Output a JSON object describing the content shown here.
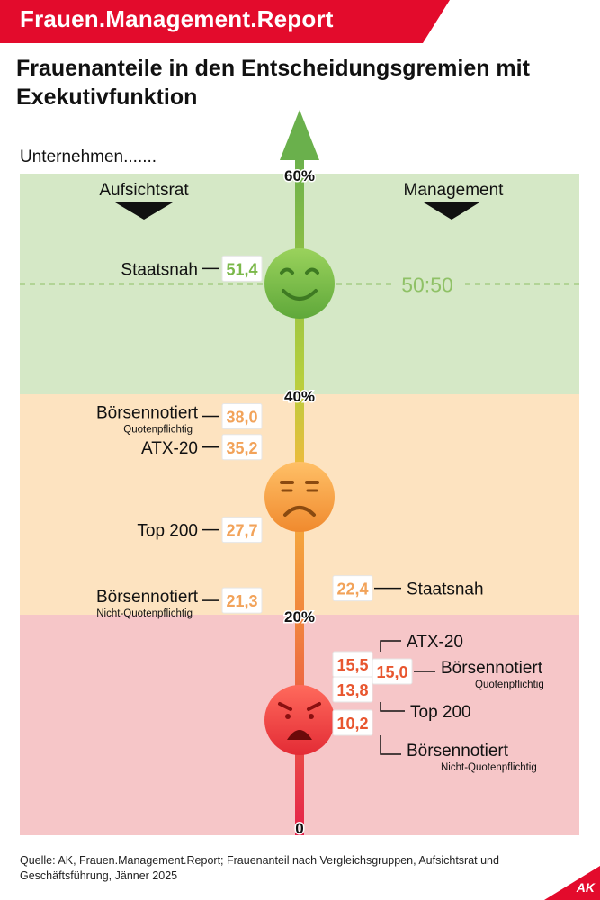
{
  "header": {
    "brand": "Frauen.Management.Report",
    "title": "Frauenanteile in den Entscheidungsgremien mit Exekutivfunktion",
    "subtitle": "Unternehmen.......",
    "source": "Quelle: AK, Frauen.Management.Report; Frauenanteil nach Vergleichsgruppen, Aufsichtsrat und Geschäftsführung, Jänner 2025",
    "logo": "AK"
  },
  "colors": {
    "brand_red": "#e30b2c",
    "zone_green": "#d5e8c6",
    "zone_orange": "#fde3c0",
    "zone_red": "#f6c6c8",
    "value_green": "#7bb84a",
    "value_orange": "#f2a35a",
    "value_red": "#e8562f",
    "smiley_green": "#7dbf48",
    "smiley_orange": "#f7a24c",
    "smiley_red": "#ef4444"
  },
  "chart_data": {
    "type": "bar",
    "axis": {
      "min": 0,
      "max": 60,
      "ticks": [
        {
          "value": 60,
          "label": "60%"
        },
        {
          "value": 40,
          "label": "40%"
        },
        {
          "value": 20,
          "label": "20%"
        },
        {
          "value": 0,
          "label": "0"
        }
      ]
    },
    "column_headers": {
      "left": "Aufsichtsrat",
      "right": "Management"
    },
    "parity_line": {
      "value": 50,
      "label": "50:50"
    },
    "zones": [
      {
        "from": 40,
        "to": 60,
        "color": "#d5e8c6",
        "mood": "happy",
        "smiley_icon": "happy-smiley-icon"
      },
      {
        "from": 20,
        "to": 40,
        "color": "#fde3c0",
        "mood": "sad",
        "smiley_icon": "sad-smiley-icon"
      },
      {
        "from": 0,
        "to": 20,
        "color": "#f6c6c8",
        "mood": "angry",
        "smiley_icon": "angry-smiley-icon"
      }
    ],
    "series": [
      {
        "name": "Aufsichtsrat",
        "points": [
          {
            "category": "Staatsnah",
            "sublabel": "",
            "value": 51.4,
            "value_label": "51,4"
          },
          {
            "category": "Börsennotiert",
            "sublabel": "Quotenpflichtig",
            "value": 38.0,
            "value_label": "38,0"
          },
          {
            "category": "ATX-20",
            "sublabel": "",
            "value": 35.2,
            "value_label": "35,2"
          },
          {
            "category": "Top 200",
            "sublabel": "",
            "value": 27.7,
            "value_label": "27,7"
          },
          {
            "category": "Börsennotiert",
            "sublabel": "Nicht-Quotenpflichtig",
            "value": 21.3,
            "value_label": "21,3"
          }
        ]
      },
      {
        "name": "Management",
        "points": [
          {
            "category": "Staatsnah",
            "sublabel": "",
            "value": 22.4,
            "value_label": "22,4"
          },
          {
            "category": "ATX-20",
            "sublabel": "",
            "value": 15.5,
            "value_label": "15,5"
          },
          {
            "category": "Börsennotiert",
            "sublabel": "Quotenpflichtig",
            "value": 15.0,
            "value_label": "15,0"
          },
          {
            "category": "Top 200",
            "sublabel": "",
            "value": 13.8,
            "value_label": "13,8"
          },
          {
            "category": "Börsennotiert",
            "sublabel": "Nicht-Quotenpflichtig",
            "value": 10.2,
            "value_label": "10,2"
          }
        ]
      }
    ]
  }
}
